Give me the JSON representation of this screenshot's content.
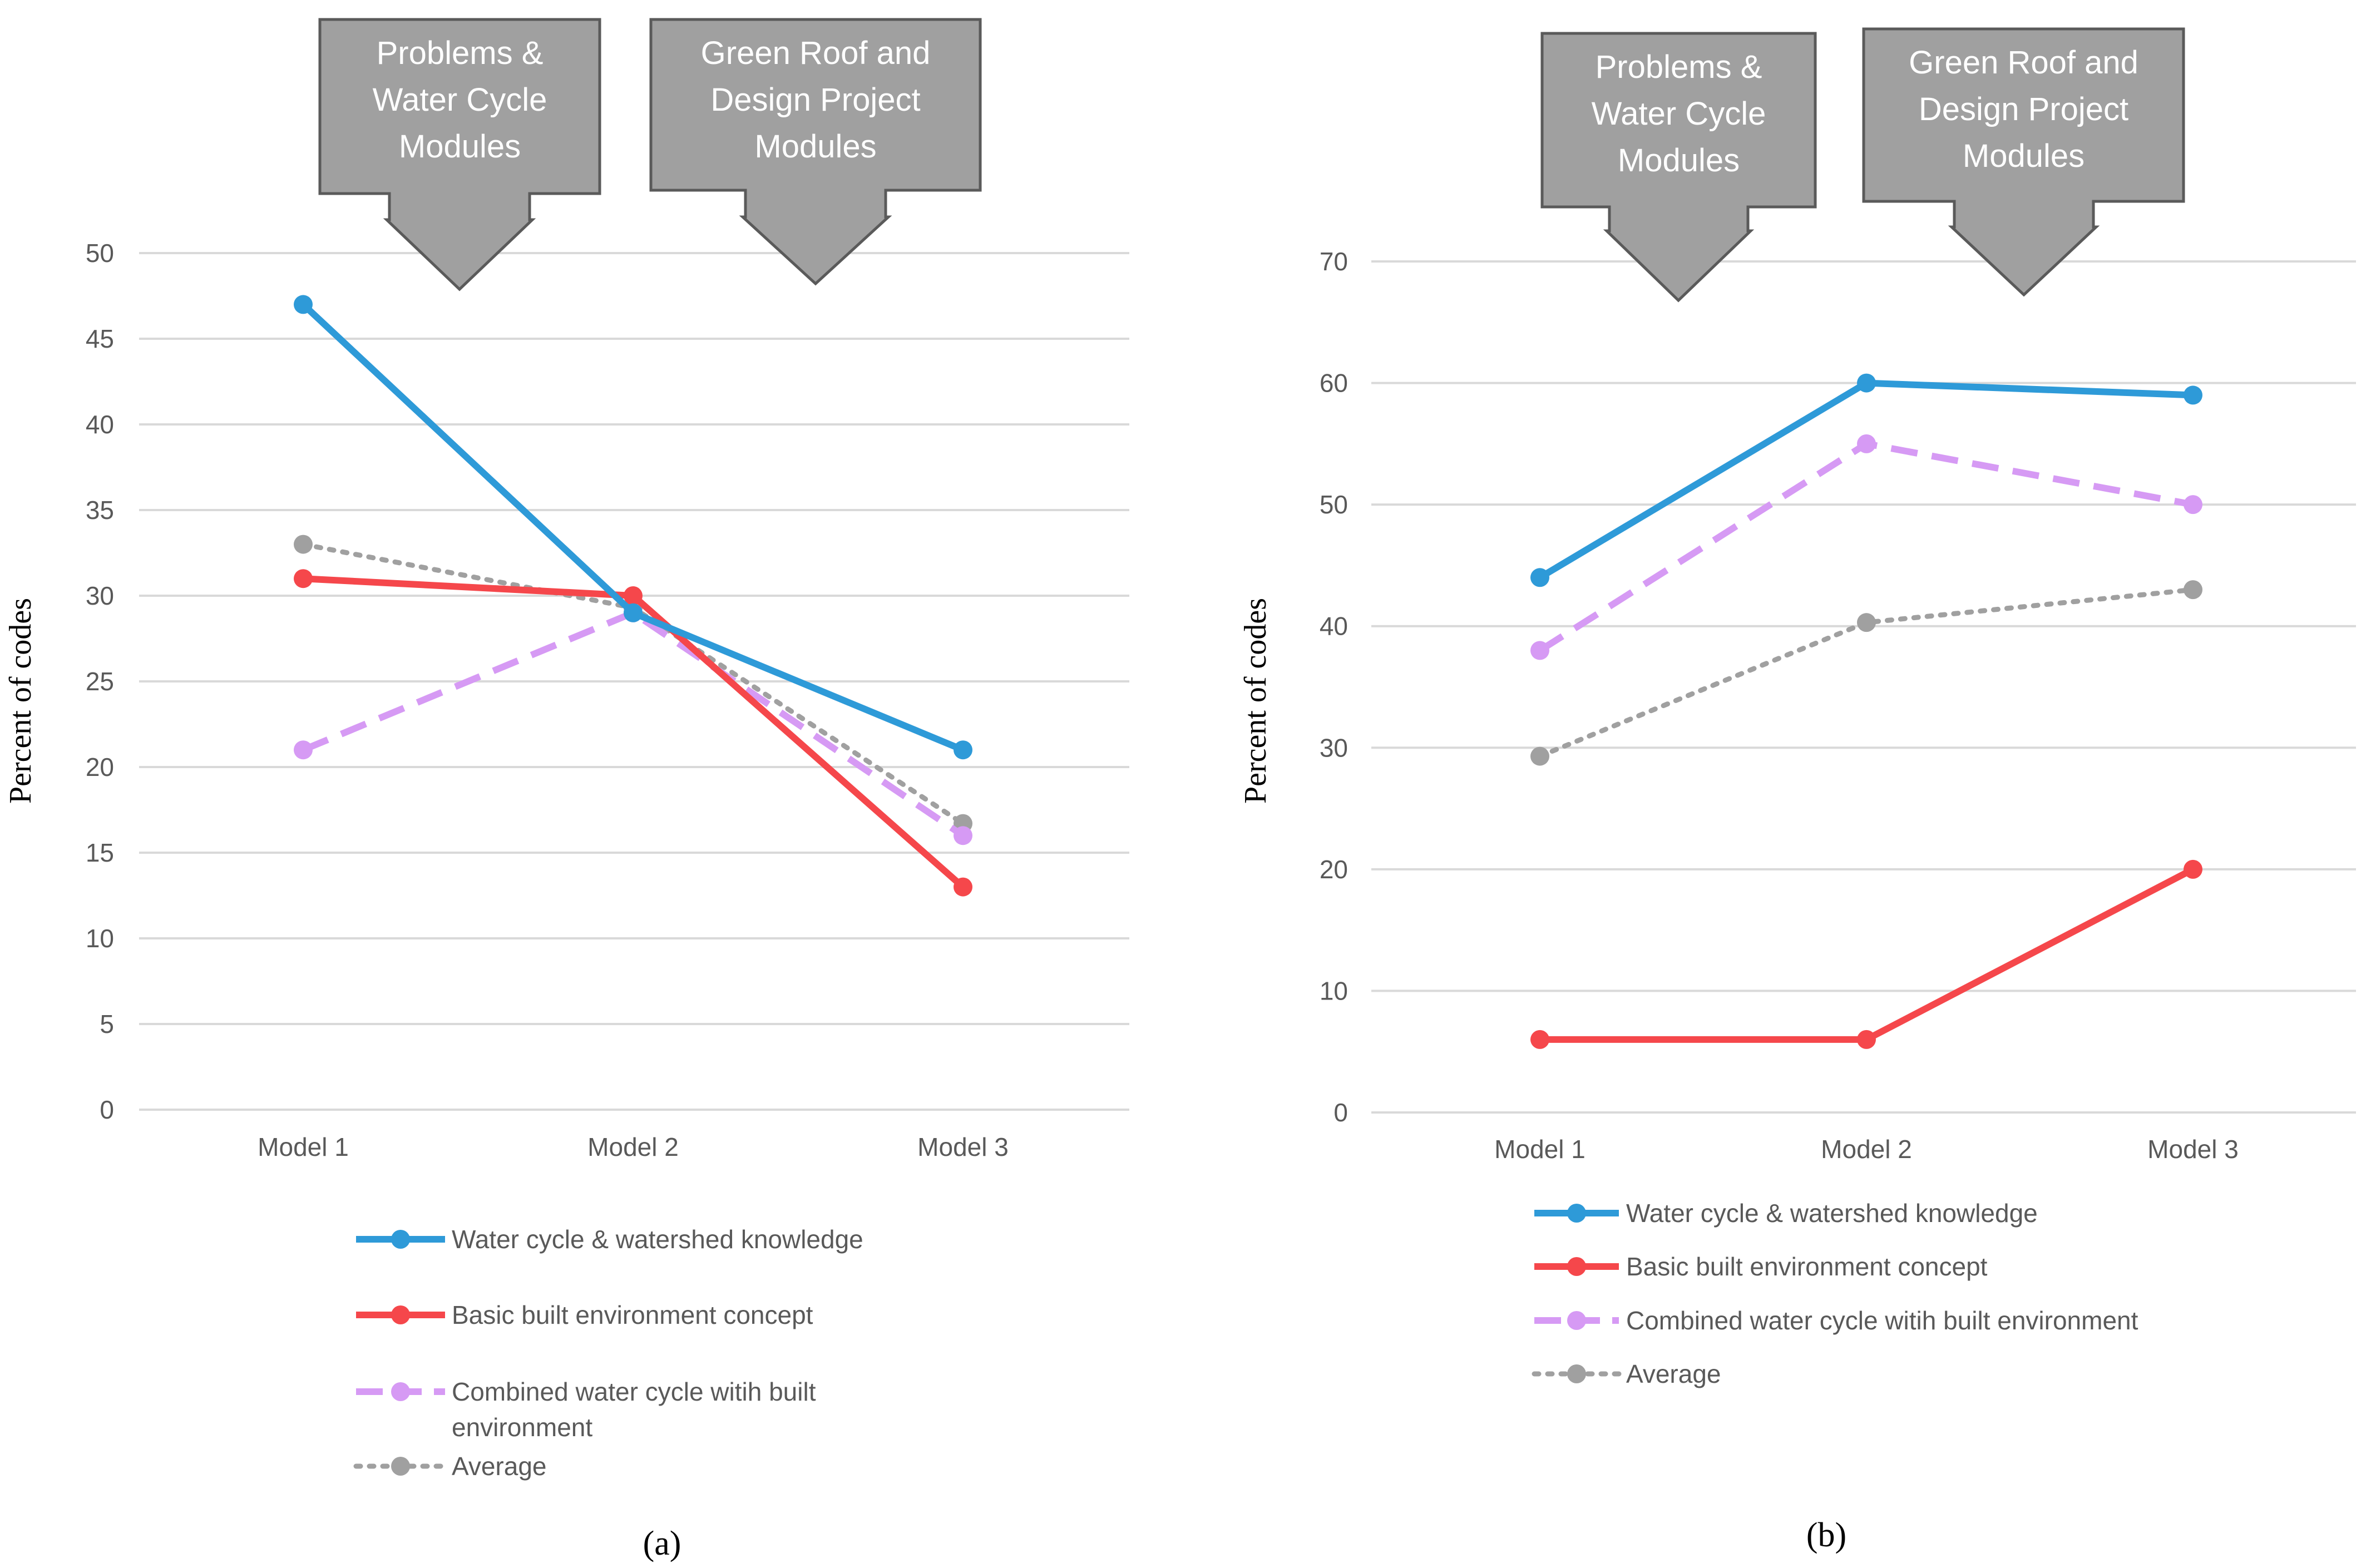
{
  "figure": {
    "panels": [
      "(a)",
      "(b)"
    ]
  },
  "colors": {
    "water": "#2e9ad8",
    "basic": "#f5474b",
    "combined": "#d69af4",
    "average": "#a0a0a0",
    "callout_fill": "#a0a0a0",
    "callout_stroke": "#5a5a5a",
    "grid": "#d9d9d9"
  },
  "chart_data": [
    {
      "type": "line",
      "panel_label": "(a)",
      "categories": [
        "Model 1",
        "Model 2",
        "Model 3"
      ],
      "ylabel": "Percent of codes",
      "xlabel": "",
      "ylim": [
        0,
        50
      ],
      "yticks": [
        0,
        5,
        10,
        15,
        20,
        25,
        30,
        35,
        40,
        45,
        50
      ],
      "grid": true,
      "legend_position": "bottom",
      "annotations": [
        {
          "text": [
            "Problems &",
            "Water Cycle",
            "Modules"
          ],
          "points_to": "Model 1 to Model 2"
        },
        {
          "text": [
            "Green Roof and",
            "Design Project",
            "Modules"
          ],
          "points_to": "Model 2 to Model 3"
        }
      ],
      "series": [
        {
          "name": "Water cycle & watershed knowledge",
          "style": "solid",
          "color_key": "water",
          "values": [
            47,
            29,
            21
          ]
        },
        {
          "name": "Basic built environment concept",
          "style": "solid",
          "color_key": "basic",
          "values": [
            31,
            30,
            13
          ]
        },
        {
          "name": "Combined water cycle witih built environment",
          "style": "dashed",
          "color_key": "combined",
          "values": [
            21,
            29,
            16
          ]
        },
        {
          "name": "Average",
          "style": "dotted",
          "color_key": "average",
          "values": [
            33,
            29.3,
            16.7
          ]
        }
      ]
    },
    {
      "type": "line",
      "panel_label": "(b)",
      "categories": [
        "Model 1",
        "Model 2",
        "Model 3"
      ],
      "ylabel": "Percent of codes",
      "xlabel": "",
      "ylim": [
        0,
        70
      ],
      "yticks": [
        0,
        10,
        20,
        30,
        40,
        50,
        60,
        70
      ],
      "grid": true,
      "legend_position": "bottom",
      "annotations": [
        {
          "text": [
            "Problems &",
            "Water Cycle",
            "Modules"
          ],
          "points_to": "Model 1 to Model 2"
        },
        {
          "text": [
            "Green Roof and",
            "Design Project",
            "Modules"
          ],
          "points_to": "Model 2 to Model 3"
        }
      ],
      "series": [
        {
          "name": "Water cycle & watershed knowledge",
          "style": "solid",
          "color_key": "water",
          "values": [
            44,
            60,
            59
          ]
        },
        {
          "name": "Basic built environment concept",
          "style": "solid",
          "color_key": "basic",
          "values": [
            6,
            6,
            20
          ]
        },
        {
          "name": "Combined water cycle witih built environment",
          "style": "dashed",
          "color_key": "combined",
          "values": [
            38,
            55,
            50
          ]
        },
        {
          "name": "Average",
          "style": "dotted",
          "color_key": "average",
          "values": [
            29.3,
            40.3,
            43
          ]
        }
      ]
    }
  ]
}
